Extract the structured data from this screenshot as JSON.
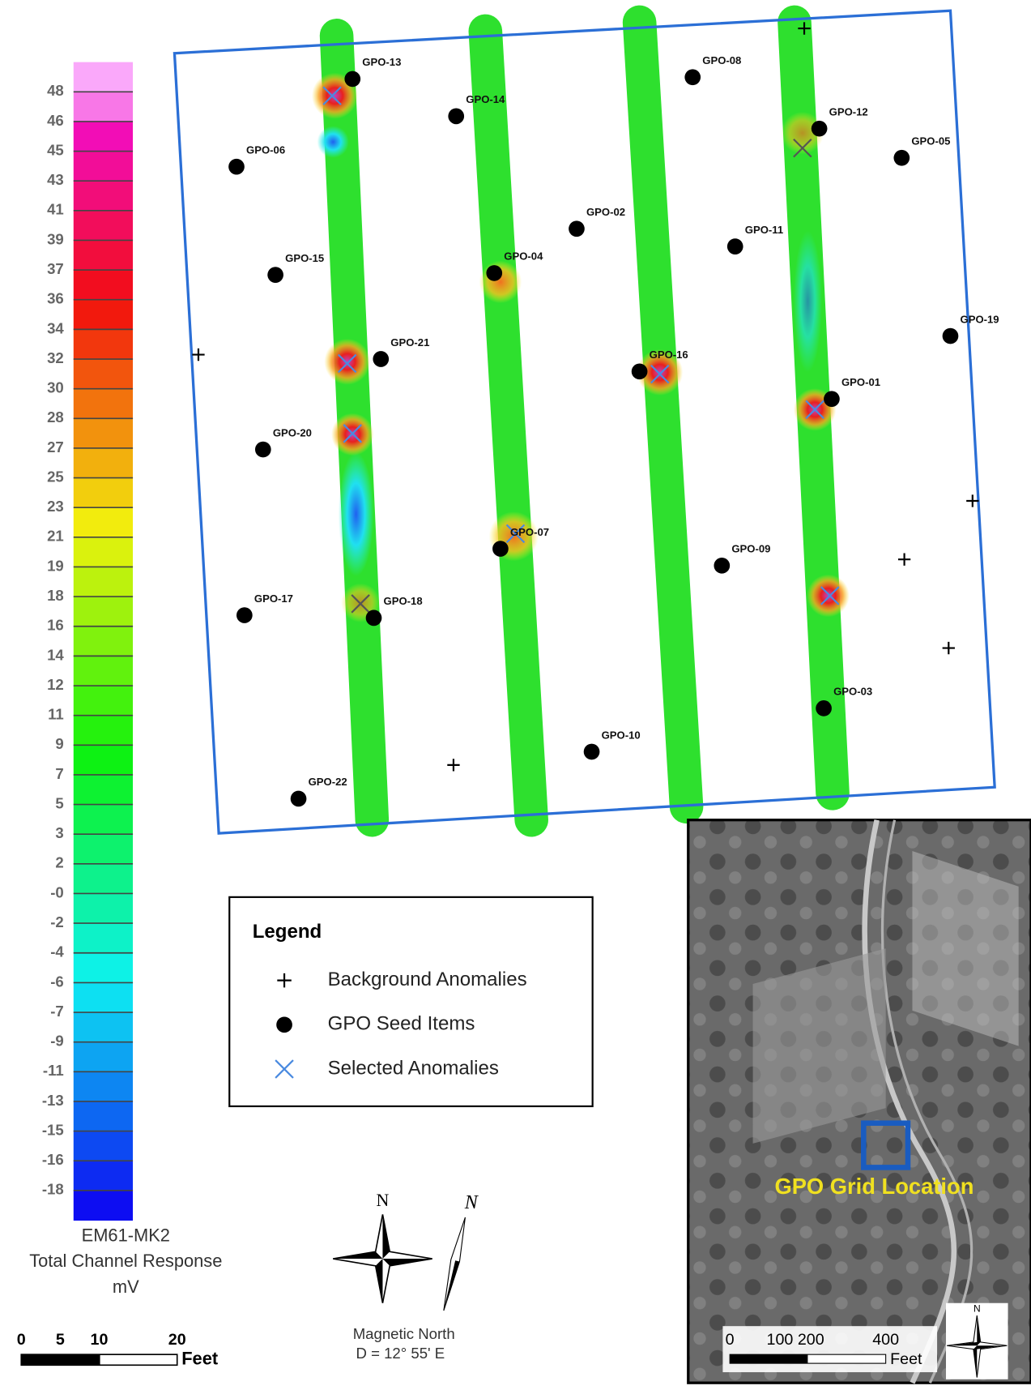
{
  "colorbar": {
    "labels": [
      "48",
      "46",
      "45",
      "43",
      "41",
      "39",
      "37",
      "36",
      "34",
      "32",
      "30",
      "28",
      "27",
      "25",
      "23",
      "21",
      "19",
      "18",
      "16",
      "14",
      "12",
      "11",
      "9",
      "7",
      "5",
      "3",
      "2",
      "-0",
      "-2",
      "-4",
      "-6",
      "-7",
      "-9",
      "-11",
      "-13",
      "-15",
      "-16",
      "-18"
    ],
    "title": [
      "EM61-MK2",
      "Total Channel Response",
      "mV"
    ]
  },
  "seed_items": [
    "GPO-13",
    "GPO-14",
    "GPO-06",
    "GPO-08",
    "GPO-12",
    "GPO-05",
    "GPO-02",
    "GPO-11",
    "GPO-15",
    "GPO-04",
    "GPO-19",
    "GPO-21",
    "GPO-16",
    "GPO-01",
    "GPO-20",
    "GPO-07",
    "GPO-09",
    "GPO-17",
    "GPO-18",
    "GPO-03",
    "GPO-10",
    "GPO-22"
  ],
  "legend": {
    "title": "Legend",
    "items": [
      "Background Anomalies",
      "GPO Seed Items",
      "Selected Anomalies"
    ]
  },
  "scale_bar": {
    "labels": [
      "0",
      "5",
      "10",
      "20"
    ],
    "unit": "Feet"
  },
  "north": {
    "true_label": "N",
    "magnetic_label": "N",
    "caption": "Magnetic North",
    "declination": "D = 12° 55' E"
  },
  "inset": {
    "location_label": "GPO Grid Location",
    "scale_labels": [
      "0",
      "100 200",
      "400"
    ],
    "unit": "Feet",
    "north_label": "N"
  }
}
